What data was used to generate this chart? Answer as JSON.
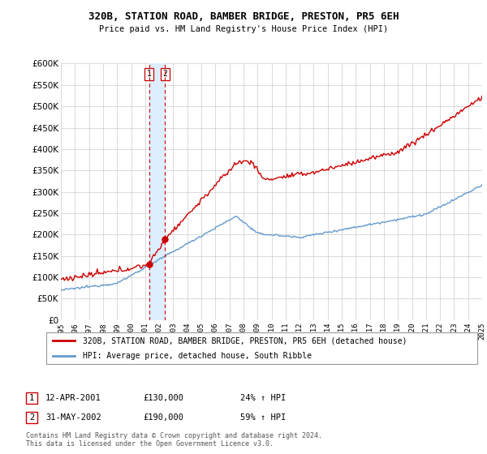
{
  "title": "320B, STATION ROAD, BAMBER BRIDGE, PRESTON, PR5 6EH",
  "subtitle": "Price paid vs. HM Land Registry's House Price Index (HPI)",
  "legend_house": "320B, STATION ROAD, BAMBER BRIDGE, PRESTON, PR5 6EH (detached house)",
  "legend_hpi": "HPI: Average price, detached house, South Ribble",
  "footer": "Contains HM Land Registry data © Crown copyright and database right 2024.\nThis data is licensed under the Open Government Licence v3.0.",
  "sale1_date": "12-APR-2001",
  "sale1_price": "£130,000",
  "sale1_hpi": "24% ↑ HPI",
  "sale2_date": "31-MAY-2002",
  "sale2_price": "£190,000",
  "sale2_hpi": "59% ↑ HPI",
  "house_color": "#cc0000",
  "hpi_color": "#6699cc",
  "shade_color": "#ddeeff",
  "ylim": [
    0,
    600000
  ],
  "yticks": [
    0,
    50000,
    100000,
    150000,
    200000,
    250000,
    300000,
    350000,
    400000,
    450000,
    500000,
    550000,
    600000
  ],
  "sale1_x_year": 2001.28,
  "sale1_y": 130000,
  "sale2_x_year": 2002.42,
  "sale2_y": 190000,
  "xmin": 1995,
  "xmax": 2025
}
